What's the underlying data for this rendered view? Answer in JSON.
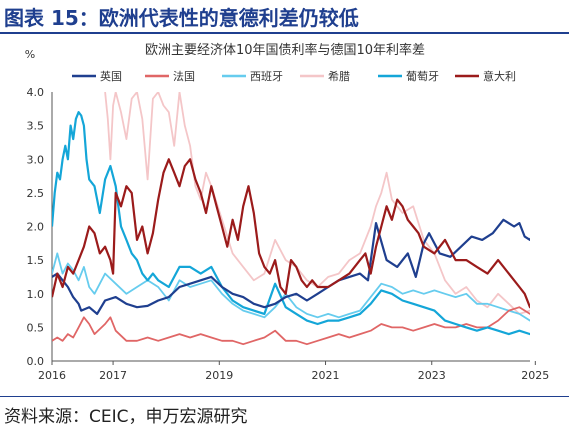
{
  "figure_title": "图表 15：欧洲代表性的意德利差仍较低",
  "source": "资料来源：CEIC，申万宏源研究",
  "colors": {
    "title": "#1f3f8f",
    "uk": "#1f3f8f",
    "france": "#e06666",
    "spain": "#66ccee",
    "greece": "#f4c6c8",
    "portugal": "#14a6d8",
    "italy": "#9b1b1b"
  },
  "chart_data": {
    "type": "line",
    "title": "欧洲主要经济体10年国债利率与德国10年利率差",
    "ylabel": "%",
    "ylim": [
      0,
      4
    ],
    "xlim": [
      2016,
      2025
    ],
    "y_ticks": [
      "0.0",
      "0.5",
      "1.0",
      "1.5",
      "2.0",
      "2.5",
      "3.0",
      "3.5",
      "4.0"
    ],
    "x_ticks": [
      "2016",
      "2017",
      "2019",
      "2021",
      "2023",
      "2025"
    ],
    "x_tick_values": [
      2016,
      2017.15,
      2019.15,
      2021.15,
      2023.15,
      2025.1
    ],
    "legend_position": "top",
    "series": [
      {
        "name": "英国",
        "key": "uk",
        "x": [
          2016.0,
          2016.1,
          2016.2,
          2016.3,
          2016.4,
          2016.5,
          2016.55,
          2016.7,
          2016.85,
          2017.0,
          2017.2,
          2017.4,
          2017.6,
          2017.8,
          2018.0,
          2018.2,
          2018.4,
          2018.6,
          2018.8,
          2019.0,
          2019.2,
          2019.4,
          2019.6,
          2019.8,
          2020.0,
          2020.2,
          2020.4,
          2020.6,
          2020.8,
          2021.0,
          2021.2,
          2021.4,
          2021.6,
          2021.8,
          2021.95,
          2022.1,
          2022.3,
          2022.5,
          2022.7,
          2022.85,
          2023.0,
          2023.1,
          2023.3,
          2023.5,
          2023.7,
          2023.9,
          2024.1,
          2024.3,
          2024.5,
          2024.7,
          2024.8,
          2024.9,
          2025.0,
          2025.1
        ],
        "y": [
          1.25,
          1.3,
          1.2,
          1.1,
          0.95,
          0.85,
          0.75,
          0.8,
          0.7,
          0.9,
          0.95,
          0.85,
          0.8,
          0.82,
          0.9,
          0.95,
          1.1,
          1.15,
          1.2,
          1.25,
          1.1,
          1.0,
          0.95,
          0.85,
          0.8,
          0.85,
          0.95,
          1.0,
          0.9,
          1.0,
          1.1,
          1.2,
          1.25,
          1.3,
          1.2,
          2.05,
          1.5,
          1.4,
          1.6,
          1.25,
          1.75,
          1.9,
          1.6,
          1.55,
          1.7,
          1.85,
          1.8,
          1.9,
          2.1,
          2.0,
          2.05,
          1.85,
          1.8,
          1.95
        ]
      },
      {
        "name": "法国",
        "key": "france",
        "x": [
          2016.0,
          2016.1,
          2016.2,
          2016.3,
          2016.4,
          2016.5,
          2016.6,
          2016.7,
          2016.8,
          2017.0,
          2017.1,
          2017.2,
          2017.4,
          2017.6,
          2017.8,
          2018.0,
          2018.2,
          2018.4,
          2018.6,
          2018.8,
          2019.0,
          2019.2,
          2019.4,
          2019.6,
          2019.8,
          2020.0,
          2020.2,
          2020.4,
          2020.6,
          2020.8,
          2021.0,
          2021.2,
          2021.4,
          2021.6,
          2021.8,
          2022.0,
          2022.2,
          2022.4,
          2022.6,
          2022.8,
          2023.0,
          2023.2,
          2023.4,
          2023.6,
          2023.8,
          2024.0,
          2024.2,
          2024.4,
          2024.6,
          2024.8,
          2025.0,
          2025.1
        ],
        "y": [
          0.3,
          0.35,
          0.3,
          0.4,
          0.35,
          0.5,
          0.65,
          0.55,
          0.4,
          0.55,
          0.65,
          0.45,
          0.3,
          0.3,
          0.35,
          0.3,
          0.35,
          0.4,
          0.35,
          0.4,
          0.35,
          0.3,
          0.3,
          0.25,
          0.3,
          0.35,
          0.45,
          0.3,
          0.3,
          0.25,
          0.3,
          0.35,
          0.4,
          0.35,
          0.4,
          0.45,
          0.55,
          0.5,
          0.5,
          0.45,
          0.5,
          0.55,
          0.5,
          0.5,
          0.55,
          0.5,
          0.5,
          0.6,
          0.75,
          0.8,
          0.7,
          0.7
        ]
      },
      {
        "name": "西班牙",
        "key": "spain",
        "x": [
          2016.0,
          2016.1,
          2016.2,
          2016.3,
          2016.4,
          2016.5,
          2016.6,
          2016.7,
          2016.8,
          2017.0,
          2017.2,
          2017.4,
          2017.6,
          2017.8,
          2018.0,
          2018.2,
          2018.4,
          2018.6,
          2018.8,
          2019.0,
          2019.2,
          2019.4,
          2019.6,
          2019.8,
          2020.0,
          2020.2,
          2020.4,
          2020.6,
          2020.8,
          2021.0,
          2021.2,
          2021.4,
          2021.6,
          2021.8,
          2022.0,
          2022.2,
          2022.4,
          2022.6,
          2022.8,
          2023.0,
          2023.2,
          2023.4,
          2023.6,
          2023.8,
          2024.0,
          2024.2,
          2024.4,
          2024.6,
          2024.8,
          2025.0,
          2025.1
        ],
        "y": [
          1.3,
          1.6,
          1.3,
          1.45,
          1.35,
          1.2,
          1.4,
          1.1,
          1.0,
          1.3,
          1.15,
          1.0,
          1.1,
          1.2,
          1.1,
          0.9,
          1.2,
          1.1,
          1.15,
          1.2,
          1.0,
          0.85,
          0.75,
          0.7,
          0.65,
          0.8,
          1.0,
          0.8,
          0.7,
          0.65,
          0.7,
          0.65,
          0.7,
          0.75,
          0.95,
          1.15,
          1.1,
          1.0,
          1.05,
          1.0,
          1.05,
          1.0,
          0.95,
          1.0,
          0.85,
          0.85,
          0.8,
          0.75,
          0.7,
          0.6,
          0.55
        ]
      },
      {
        "name": "希腊",
        "key": "greece",
        "x": [
          2017.0,
          2017.05,
          2017.1,
          2017.15,
          2017.2,
          2017.3,
          2017.4,
          2017.5,
          2017.6,
          2017.7,
          2017.8,
          2017.9,
          2018.0,
          2018.1,
          2018.2,
          2018.3,
          2018.4,
          2018.5,
          2018.6,
          2018.7,
          2018.8,
          2018.9,
          2019.0,
          2019.2,
          2019.4,
          2019.6,
          2019.8,
          2020.0,
          2020.2,
          2020.4,
          2020.6,
          2020.8,
          2021.0,
          2021.2,
          2021.4,
          2021.6,
          2021.8,
          2022.0,
          2022.1,
          2022.2,
          2022.3,
          2022.4,
          2022.6,
          2022.8,
          2023.0,
          2023.2,
          2023.4,
          2023.6,
          2023.8,
          2024.0,
          2024.2,
          2024.4,
          2024.6,
          2024.8,
          2025.0,
          2025.1
        ],
        "y": [
          4.0,
          3.6,
          3.0,
          3.8,
          4.0,
          3.7,
          3.3,
          3.9,
          4.0,
          3.6,
          2.7,
          3.9,
          4.0,
          3.8,
          3.7,
          3.2,
          4.0,
          3.5,
          3.2,
          2.6,
          2.4,
          2.8,
          2.6,
          2.1,
          1.6,
          1.4,
          1.2,
          1.3,
          1.8,
          1.5,
          1.4,
          1.2,
          1.1,
          1.25,
          1.3,
          1.5,
          1.6,
          2.0,
          2.3,
          2.5,
          2.8,
          2.4,
          2.2,
          2.3,
          1.8,
          1.6,
          1.2,
          1.0,
          1.1,
          0.9,
          0.8,
          1.0,
          0.85,
          0.7,
          0.75,
          0.8
        ]
      },
      {
        "name": "葡萄牙",
        "key": "portugal",
        "x": [
          2016.0,
          2016.05,
          2016.1,
          2016.15,
          2016.2,
          2016.25,
          2016.3,
          2016.35,
          2016.4,
          2016.45,
          2016.5,
          2016.55,
          2016.6,
          2016.65,
          2016.7,
          2016.8,
          2016.9,
          2017.0,
          2017.1,
          2017.2,
          2017.3,
          2017.4,
          2017.5,
          2017.6,
          2017.7,
          2017.8,
          2017.9,
          2018.0,
          2018.2,
          2018.4,
          2018.6,
          2018.8,
          2019.0,
          2019.2,
          2019.4,
          2019.6,
          2019.8,
          2020.0,
          2020.2,
          2020.4,
          2020.6,
          2020.8,
          2021.0,
          2021.2,
          2021.4,
          2021.6,
          2021.8,
          2022.0,
          2022.2,
          2022.4,
          2022.6,
          2022.8,
          2023.0,
          2023.2,
          2023.4,
          2023.6,
          2023.8,
          2024.0,
          2024.2,
          2024.4,
          2024.6,
          2024.8,
          2025.0,
          2025.1
        ],
        "y": [
          2.0,
          2.5,
          2.8,
          2.7,
          3.0,
          3.2,
          3.0,
          3.5,
          3.3,
          3.6,
          3.7,
          3.65,
          3.5,
          3.0,
          2.7,
          2.6,
          2.2,
          2.7,
          2.9,
          2.6,
          2.0,
          1.8,
          1.6,
          1.5,
          1.3,
          1.2,
          1.3,
          1.2,
          1.1,
          1.4,
          1.4,
          1.3,
          1.4,
          1.1,
          0.9,
          0.8,
          0.75,
          0.7,
          1.15,
          0.8,
          0.7,
          0.6,
          0.55,
          0.6,
          0.6,
          0.65,
          0.7,
          0.85,
          1.05,
          1.0,
          0.9,
          0.85,
          0.8,
          0.75,
          0.6,
          0.55,
          0.5,
          0.45,
          0.5,
          0.45,
          0.4,
          0.45,
          0.4,
          0.45
        ]
      },
      {
        "name": "意大利",
        "key": "italy",
        "x": [
          2016.0,
          2016.1,
          2016.2,
          2016.3,
          2016.4,
          2016.5,
          2016.6,
          2016.7,
          2016.8,
          2016.9,
          2017.0,
          2017.1,
          2017.15,
          2017.2,
          2017.3,
          2017.4,
          2017.5,
          2017.6,
          2017.7,
          2017.8,
          2017.9,
          2018.0,
          2018.1,
          2018.2,
          2018.3,
          2018.4,
          2018.5,
          2018.6,
          2018.7,
          2018.8,
          2018.9,
          2019.0,
          2019.1,
          2019.2,
          2019.3,
          2019.4,
          2019.5,
          2019.6,
          2019.7,
          2019.8,
          2019.9,
          2020.0,
          2020.1,
          2020.2,
          2020.3,
          2020.4,
          2020.5,
          2020.6,
          2020.7,
          2020.8,
          2020.9,
          2021.0,
          2021.2,
          2021.4,
          2021.6,
          2021.8,
          2021.9,
          2022.0,
          2022.1,
          2022.2,
          2022.3,
          2022.4,
          2022.5,
          2022.6,
          2022.7,
          2022.8,
          2022.9,
          2023.0,
          2023.2,
          2023.4,
          2023.6,
          2023.8,
          2024.0,
          2024.2,
          2024.4,
          2024.6,
          2024.8,
          2024.9,
          2025.0,
          2025.1
        ],
        "y": [
          0.95,
          1.3,
          1.1,
          1.4,
          1.3,
          1.5,
          1.7,
          2.0,
          1.9,
          1.6,
          1.7,
          1.5,
          1.3,
          2.5,
          2.3,
          2.6,
          2.5,
          1.8,
          2.0,
          1.6,
          1.9,
          2.4,
          2.8,
          3.0,
          2.8,
          2.6,
          2.9,
          3.0,
          2.7,
          2.5,
          2.2,
          2.6,
          2.3,
          2.0,
          1.7,
          2.1,
          1.8,
          2.3,
          2.6,
          2.2,
          1.6,
          1.4,
          1.3,
          1.5,
          1.1,
          1.0,
          1.5,
          1.4,
          1.2,
          1.1,
          1.2,
          1.1,
          1.1,
          1.2,
          1.3,
          1.5,
          1.6,
          1.3,
          1.7,
          2.0,
          2.3,
          2.1,
          2.4,
          2.3,
          2.1,
          2.0,
          1.9,
          1.7,
          1.6,
          1.8,
          1.5,
          1.5,
          1.4,
          1.3,
          1.5,
          1.3,
          1.1,
          1.0,
          0.8,
          0.85
        ]
      }
    ]
  }
}
